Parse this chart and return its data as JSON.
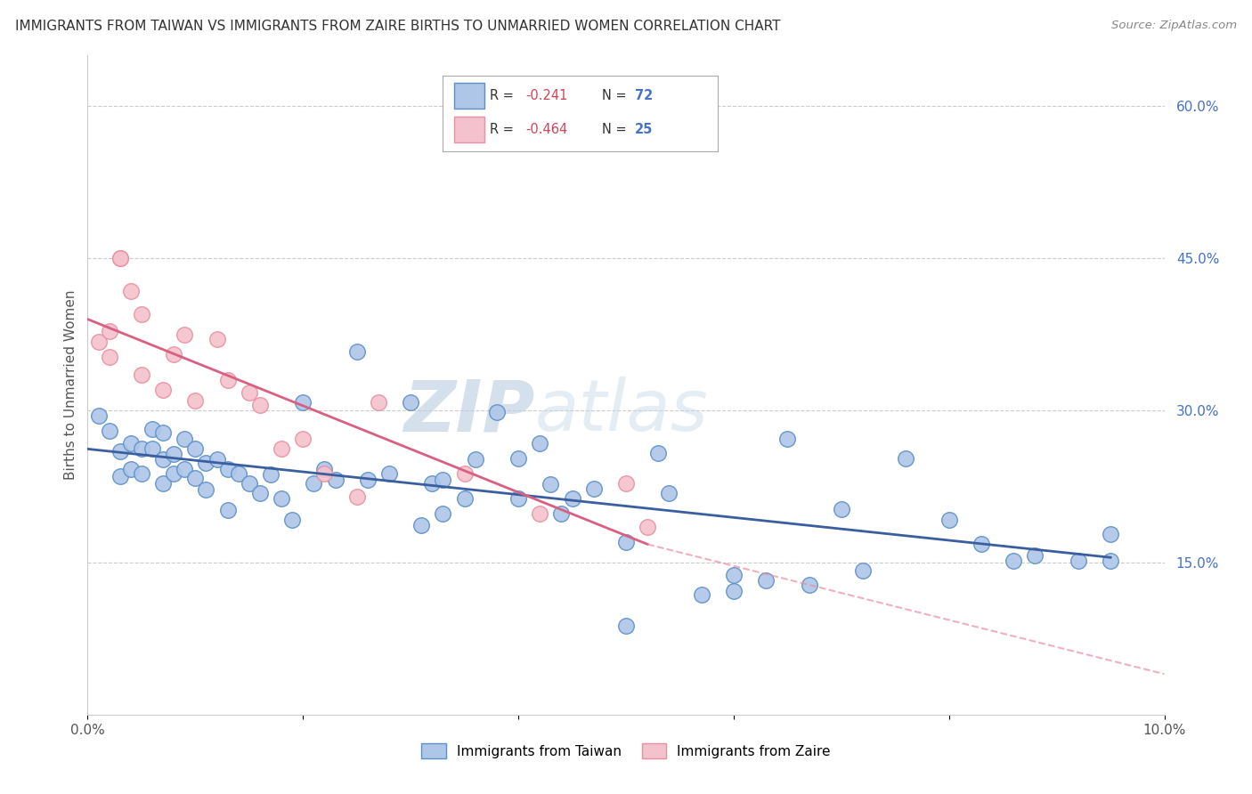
{
  "title": "IMMIGRANTS FROM TAIWAN VS IMMIGRANTS FROM ZAIRE BIRTHS TO UNMARRIED WOMEN CORRELATION CHART",
  "source": "Source: ZipAtlas.com",
  "ylabel": "Births to Unmarried Women",
  "legend_taiwan": "Immigrants from Taiwan",
  "legend_zaire": "Immigrants from Zaire",
  "r_taiwan": "-0.241",
  "n_taiwan": "72",
  "r_zaire": "-0.464",
  "n_zaire": "25",
  "xlim": [
    0.0,
    0.1
  ],
  "ylim": [
    0.0,
    0.65
  ],
  "yticks_right": [
    0.15,
    0.3,
    0.45,
    0.6
  ],
  "yticks_right_labels": [
    "15.0%",
    "30.0%",
    "45.0%",
    "60.0%"
  ],
  "xticks": [
    0.0,
    0.02,
    0.04,
    0.06,
    0.08,
    0.1
  ],
  "xtick_labels": [
    "0.0%",
    "",
    "",
    "",
    "",
    "10.0%"
  ],
  "color_taiwan": "#aec6e8",
  "color_taiwan_edge": "#5b8fc9",
  "color_taiwan_line": "#3a5fa0",
  "color_zaire": "#f4c2cc",
  "color_zaire_edge": "#e88fa0",
  "color_zaire_line": "#d96080",
  "taiwan_x": [
    0.001,
    0.002,
    0.003,
    0.003,
    0.004,
    0.004,
    0.005,
    0.005,
    0.006,
    0.006,
    0.007,
    0.007,
    0.007,
    0.008,
    0.008,
    0.009,
    0.009,
    0.01,
    0.01,
    0.011,
    0.011,
    0.012,
    0.013,
    0.013,
    0.014,
    0.015,
    0.016,
    0.017,
    0.018,
    0.019,
    0.02,
    0.021,
    0.022,
    0.023,
    0.025,
    0.026,
    0.028,
    0.03,
    0.032,
    0.033,
    0.035,
    0.036,
    0.038,
    0.04,
    0.04,
    0.043,
    0.044,
    0.045,
    0.047,
    0.05,
    0.053,
    0.054,
    0.057,
    0.06,
    0.06,
    0.063,
    0.065,
    0.067,
    0.07,
    0.072,
    0.076,
    0.08,
    0.083,
    0.086,
    0.088,
    0.092,
    0.095,
    0.095,
    0.042,
    0.05,
    0.033,
    0.031
  ],
  "taiwan_y": [
    0.295,
    0.28,
    0.26,
    0.235,
    0.268,
    0.242,
    0.262,
    0.238,
    0.282,
    0.262,
    0.278,
    0.252,
    0.228,
    0.257,
    0.238,
    0.272,
    0.242,
    0.262,
    0.233,
    0.248,
    0.222,
    0.252,
    0.242,
    0.202,
    0.238,
    0.228,
    0.218,
    0.237,
    0.213,
    0.192,
    0.308,
    0.228,
    0.242,
    0.232,
    0.358,
    0.232,
    0.238,
    0.308,
    0.228,
    0.232,
    0.213,
    0.252,
    0.298,
    0.253,
    0.213,
    0.227,
    0.198,
    0.213,
    0.223,
    0.088,
    0.258,
    0.218,
    0.118,
    0.122,
    0.138,
    0.132,
    0.272,
    0.128,
    0.203,
    0.142,
    0.253,
    0.192,
    0.168,
    0.152,
    0.157,
    0.152,
    0.178,
    0.152,
    0.268,
    0.17,
    0.198,
    0.187
  ],
  "zaire_x": [
    0.001,
    0.002,
    0.002,
    0.003,
    0.003,
    0.004,
    0.005,
    0.005,
    0.007,
    0.008,
    0.009,
    0.01,
    0.012,
    0.013,
    0.015,
    0.016,
    0.018,
    0.02,
    0.022,
    0.025,
    0.027,
    0.035,
    0.042,
    0.05,
    0.052
  ],
  "zaire_y": [
    0.368,
    0.378,
    0.353,
    0.45,
    0.45,
    0.418,
    0.395,
    0.335,
    0.32,
    0.355,
    0.375,
    0.31,
    0.37,
    0.33,
    0.318,
    0.305,
    0.262,
    0.272,
    0.238,
    0.215,
    0.308,
    0.238,
    0.198,
    0.228,
    0.185
  ],
  "taiwan_trend_x": [
    0.0,
    0.095
  ],
  "taiwan_trend_y": [
    0.262,
    0.155
  ],
  "zaire_trend_x": [
    0.0,
    0.052
  ],
  "zaire_trend_y": [
    0.39,
    0.168
  ],
  "dashed_trend_x": [
    0.052,
    0.1
  ],
  "dashed_trend_y": [
    0.168,
    0.04
  ],
  "watermark_zip": "ZIP",
  "watermark_atlas": "atlas",
  "background_color": "#ffffff",
  "grid_color": "#cccccc"
}
